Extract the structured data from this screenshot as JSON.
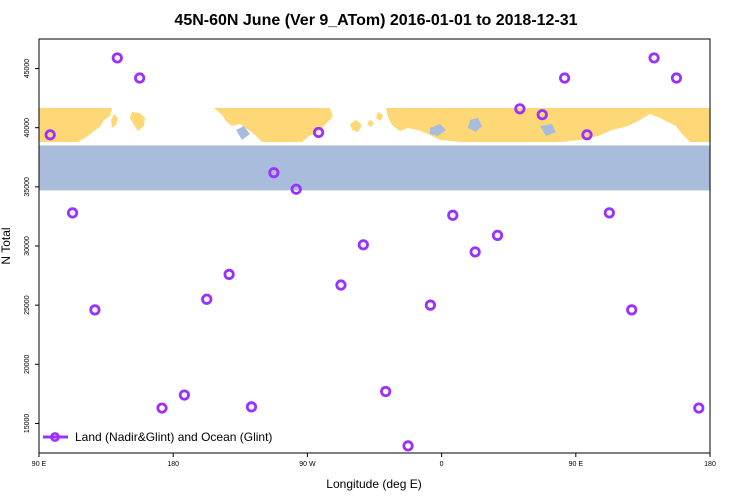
{
  "chart_data": {
    "type": "scatter",
    "title": "45N-60N June (Ver 9_ATom)   2016-01-01 to 2018-12-31",
    "xlabel": "Longitude (deg E)",
    "ylabel": "N Total",
    "xlim": [
      90,
      540
    ],
    "ylim": [
      12500,
      47500
    ],
    "x_ticks": [
      {
        "value": 90,
        "label": "90 E"
      },
      {
        "value": 180,
        "label": "180"
      },
      {
        "value": 270,
        "label": "90 W"
      },
      {
        "value": 360,
        "label": "0"
      },
      {
        "value": 450,
        "label": "90 E"
      },
      {
        "value": 540,
        "label": "180"
      }
    ],
    "y_ticks": [
      {
        "value": 15000,
        "label": "15000"
      },
      {
        "value": 20000,
        "label": "20000"
      },
      {
        "value": 25000,
        "label": "25000"
      },
      {
        "value": 30000,
        "label": "30000"
      },
      {
        "value": 35000,
        "label": "35000"
      },
      {
        "value": 40000,
        "label": "40000"
      },
      {
        "value": 45000,
        "label": "45000"
      }
    ],
    "map_band": {
      "lat_range": "45N-60N",
      "y_from": 34700,
      "y_to": 38500
    },
    "legend": {
      "position": "bottom-left"
    },
    "series": [
      {
        "name": "Land (Nadir&Glint) and Ocean (Glint)",
        "color": "#9b30ff",
        "x": [
          97.5,
          112.5,
          127.5,
          142.5,
          157.5,
          172.5,
          187.5,
          202.5,
          217.5,
          232.5,
          247.5,
          262.5,
          277.5,
          292.5,
          307.5,
          322.5,
          337.5,
          352.5,
          367.5,
          382.5,
          397.5,
          412.5,
          427.5,
          442.5,
          457.5,
          472.5,
          487.5,
          502.5,
          517.5,
          532.5
        ],
        "y": [
          39400,
          32800,
          24600,
          45900,
          44200,
          16300,
          17400,
          25500,
          27600,
          16400,
          36200,
          34800,
          39600,
          26700,
          30100,
          17700,
          13100,
          25000,
          32600,
          29500,
          30900,
          41600,
          41100,
          44200,
          39400,
          32800,
          24600,
          45900,
          44200,
          16300
        ]
      }
    ]
  }
}
